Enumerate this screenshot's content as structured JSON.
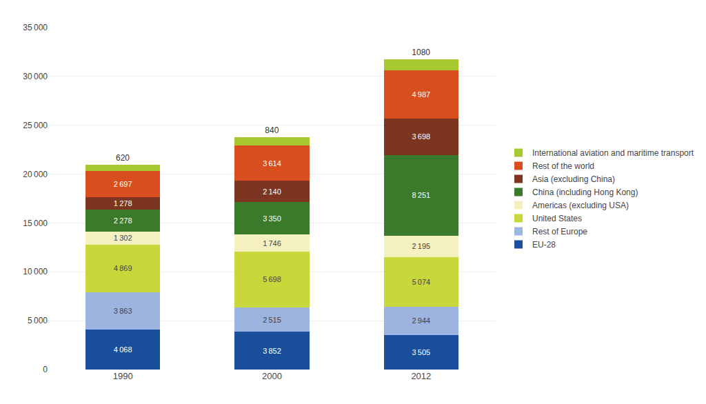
{
  "chart_data": {
    "type": "bar",
    "stacked": true,
    "categories": [
      "1990",
      "2000",
      "2012"
    ],
    "series": [
      {
        "name": "EU-28",
        "color": "#1a4f9c",
        "values": [
          4068,
          3852,
          3505
        ],
        "value_labels": [
          "4 068",
          "3 852",
          "3 505"
        ]
      },
      {
        "name": "Rest of Europe",
        "color": "#9db3e0",
        "values": [
          3863,
          2515,
          2944
        ],
        "value_labels": [
          "3 863",
          "2 515",
          "2 944"
        ]
      },
      {
        "name": "United States",
        "color": "#c8d83a",
        "values": [
          4869,
          5698,
          5074
        ],
        "value_labels": [
          "4 869",
          "5 698",
          "5 074"
        ]
      },
      {
        "name": "Americas (excluding USA)",
        "color": "#f5f0c0",
        "values": [
          1302,
          1746,
          2195
        ],
        "value_labels": [
          "1 302",
          "1 746",
          "2 195"
        ]
      },
      {
        "name": "China (including Hong Kong)",
        "color": "#3a7a2a",
        "values": [
          2278,
          3350,
          8251
        ],
        "value_labels": [
          "2 278",
          "3 350",
          "8 251"
        ]
      },
      {
        "name": "Asia (excluding China)",
        "color": "#7b3520",
        "values": [
          1278,
          2140,
          3698
        ],
        "value_labels": [
          "1 278",
          "2 140",
          "3 698"
        ]
      },
      {
        "name": "Rest of the world",
        "color": "#d94e1e",
        "values": [
          2697,
          3614,
          4987
        ],
        "value_labels": [
          "2 697",
          "3 614",
          "4 987"
        ]
      },
      {
        "name": "International aviation and maritime transport",
        "color": "#a8c832",
        "values": [
          620,
          840,
          1080
        ]
      }
    ],
    "ylim": [
      0,
      35000
    ],
    "yticks": [
      0,
      {
        "value": 5000,
        "label": "5 000"
      },
      {
        "value": 10000,
        "label": "10 000"
      },
      {
        "value": 15000,
        "label": "15 000"
      },
      {
        "value": 20000,
        "label": "20 000"
      },
      {
        "value": 25000,
        "label": "25 000"
      },
      {
        "value": 30000,
        "label": "30 000"
      },
      {
        "value": 35000,
        "label": "35 000"
      }
    ],
    "grid": true,
    "legend": "right",
    "data_labels": true
  }
}
